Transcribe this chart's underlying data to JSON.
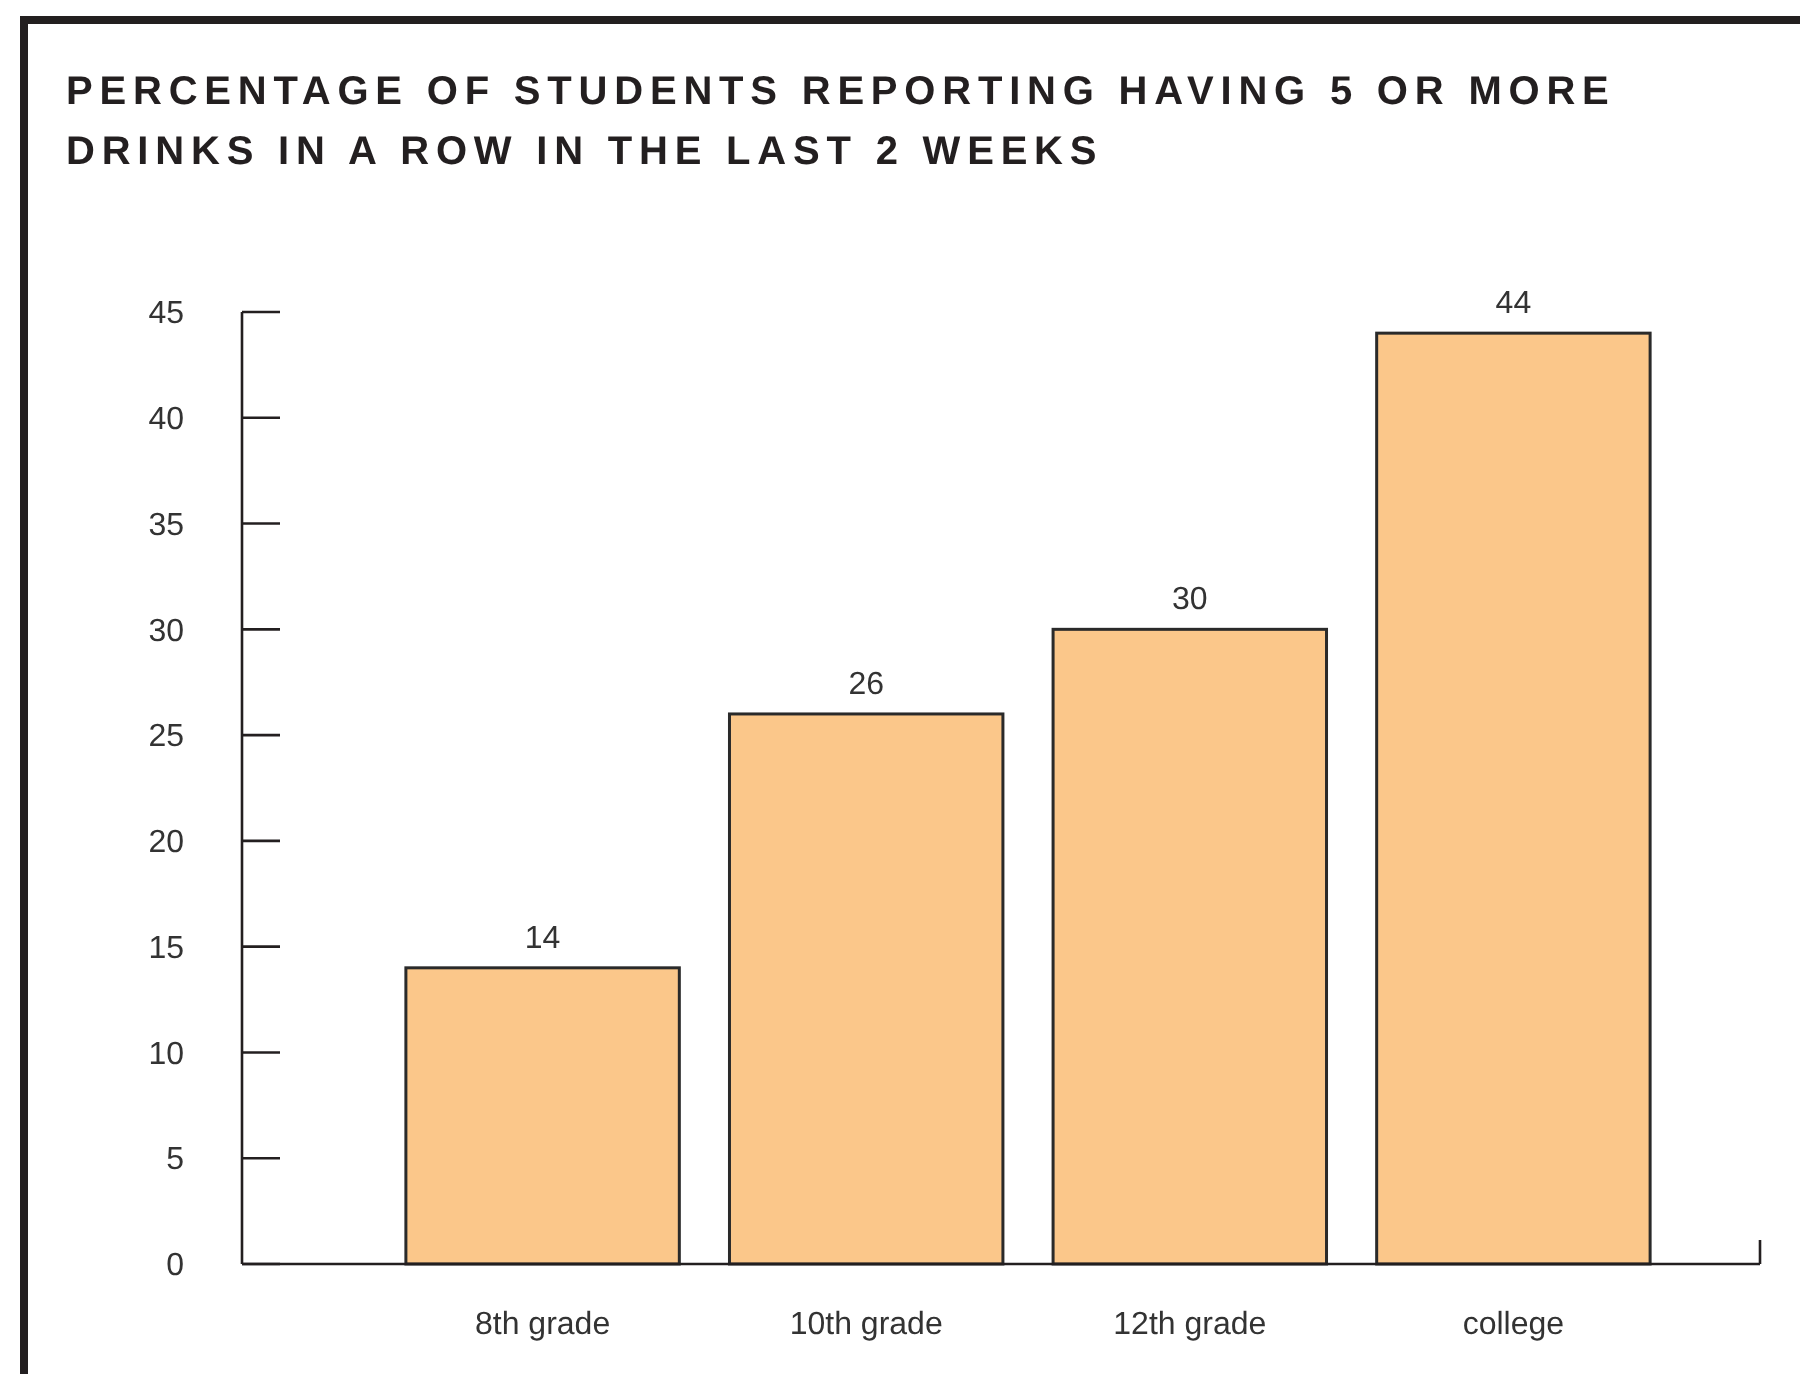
{
  "chart_data": {
    "type": "bar",
    "title": "PERCENTAGE OF STUDENTS REPORTING HAVING 5 OR MORE DRINKS IN A ROW IN THE LAST 2 WEEKS",
    "categories": [
      "8th grade",
      "10th grade",
      "12th grade",
      "college"
    ],
    "values": [
      14,
      26,
      30,
      44
    ],
    "color": "#fbc78a",
    "ylim": [
      0,
      45
    ],
    "yticks": [
      0,
      5,
      10,
      15,
      20,
      25,
      30,
      35,
      40,
      45
    ],
    "grid": false,
    "data_labels": true
  }
}
